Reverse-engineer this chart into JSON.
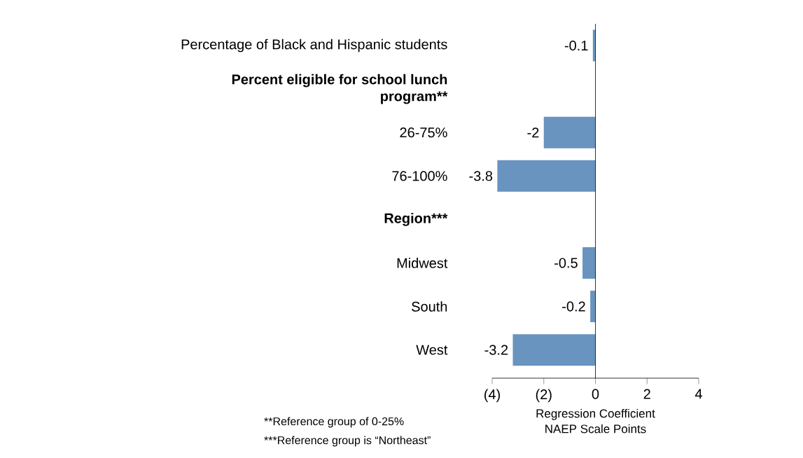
{
  "chart_data": {
    "type": "bar",
    "orientation": "horizontal",
    "categories": [
      "Percentage of Black and Hispanic students",
      "Percent eligible for school lunch program**",
      "26-75%",
      "76-100%",
      "Region***",
      "Midwest",
      "South",
      "West"
    ],
    "values": [
      -0.1,
      null,
      -2,
      -3.8,
      null,
      -0.5,
      -0.2,
      -3.2
    ],
    "value_labels": [
      "-0.1",
      null,
      "-2",
      "-3.8",
      null,
      "-0.5",
      "-0.2",
      "-3.2"
    ],
    "color": "#6894bf",
    "xlim": [
      -4,
      4
    ],
    "xticks": [
      {
        "value": -4,
        "label": "(4)"
      },
      {
        "value": -2,
        "label": "(2)"
      },
      0,
      2,
      4
    ],
    "xlabel": "Regression Coefficient NAEP Scale Points",
    "annotations": [
      "**Reference group of 0-25%",
      "***Reference group is “Northeast”"
    ],
    "data_labels": true
  }
}
